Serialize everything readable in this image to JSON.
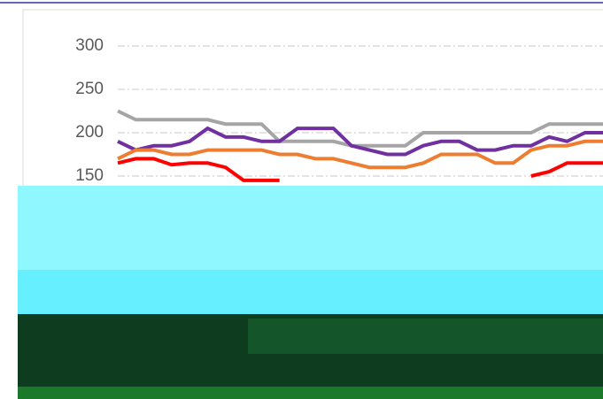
{
  "chart_data": {
    "type": "line",
    "categories": [
      null,
      null,
      null,
      null,
      null,
      null,
      null,
      null,
      null,
      null,
      null,
      null,
      null,
      null,
      null,
      null,
      null,
      null,
      null,
      null,
      null,
      null,
      null,
      null,
      null,
      null,
      null,
      null
    ],
    "series": [
      {
        "color": "#a5a5a5",
        "values": [
          225,
          215,
          215,
          215,
          215,
          215,
          210,
          210,
          210,
          190,
          190,
          190,
          190,
          185,
          185,
          185,
          185,
          200,
          200,
          200,
          200,
          200,
          200,
          200,
          210,
          210,
          210,
          210
        ]
      },
      {
        "color": "#7030a0",
        "values": [
          190,
          180,
          185,
          185,
          190,
          205,
          195,
          195,
          190,
          190,
          205,
          205,
          205,
          185,
          180,
          175,
          175,
          185,
          190,
          190,
          180,
          180,
          185,
          185,
          195,
          190,
          200,
          200
        ]
      },
      {
        "color": "#ed7d31",
        "values": [
          170,
          180,
          180,
          175,
          175,
          180,
          180,
          180,
          180,
          175,
          175,
          170,
          170,
          165,
          160,
          160,
          160,
          165,
          175,
          175,
          175,
          165,
          165,
          180,
          185,
          185,
          190,
          190
        ]
      },
      {
        "color": "#ff0000",
        "values": [
          165,
          170,
          170,
          163,
          165,
          165,
          160,
          145,
          145,
          145,
          null,
          null,
          null,
          null,
          null,
          null,
          null,
          null,
          null,
          null,
          null,
          null,
          null,
          150,
          155,
          165,
          165,
          165
        ]
      }
    ],
    "ylim": [
      0,
      300
    ],
    "yticks": [
      150,
      200,
      250,
      300
    ],
    "grid": true
  }
}
